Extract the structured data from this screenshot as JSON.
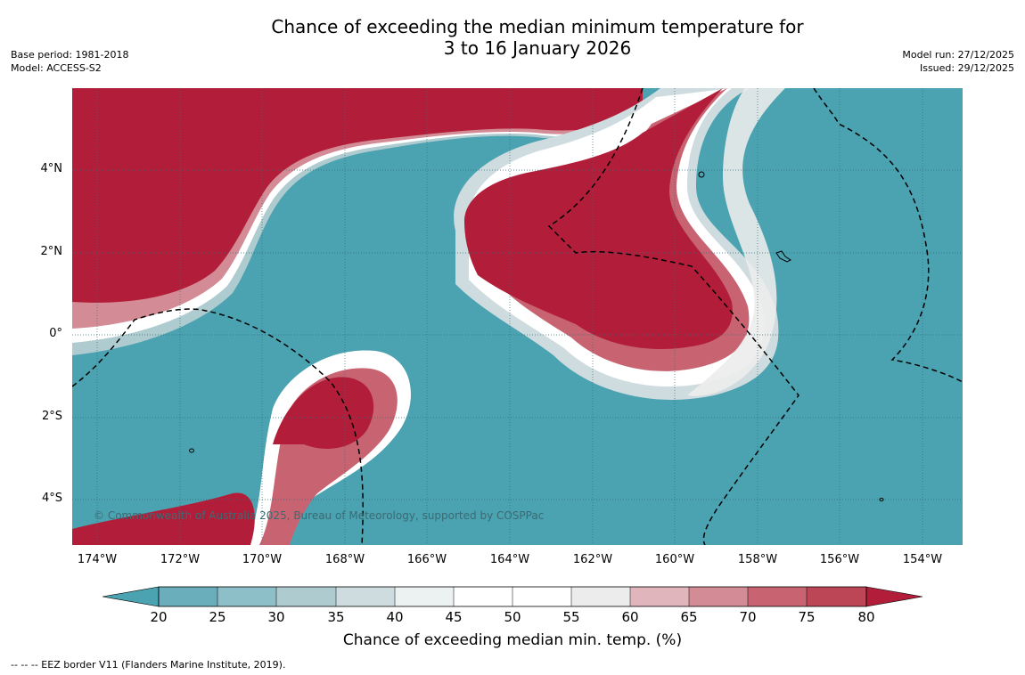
{
  "title": {
    "line1": "Chance of exceeding the median minimum temperature for",
    "line2": "3 to 16 January 2026"
  },
  "meta_left": {
    "base_period": "Base period: 1981-2018",
    "model": "Model: ACCESS-S2"
  },
  "meta_right": {
    "model_run": "Model run: 27/12/2025",
    "issued": "Issued: 29/12/2025"
  },
  "map": {
    "lat_ticks": [
      "4°N",
      "2°N",
      "0°",
      "2°S",
      "4°S"
    ],
    "lon_ticks": [
      "174°W",
      "172°W",
      "170°W",
      "168°W",
      "166°W",
      "164°W",
      "162°W",
      "160°W",
      "158°W",
      "156°W",
      "154°W"
    ],
    "copyright": "© Commonwealth of Australia 2025, Bureau of Meteorology, supported by COSPPac",
    "extent": {
      "lon": [
        -174.6,
        -153.0
      ],
      "lat": [
        -5.2,
        5.9
      ]
    }
  },
  "colorbar": {
    "label": "Chance of exceeding median min. temp. (%)",
    "ticks": [
      "20",
      "25",
      "30",
      "35",
      "40",
      "45",
      "50",
      "55",
      "60",
      "65",
      "70",
      "75",
      "80"
    ],
    "colors": {
      "under": "#4ba2b1",
      "20-25": "#6aaebb",
      "25-30": "#8cbfc8",
      "30-35": "#aecbcf",
      "35-40": "#cfdcdf",
      "40-45": "#ecf1f2",
      "45-50": "#ffffff",
      "50-55": "#ffffff",
      "55-60": "#ececec",
      "60-65": "#e0b5bb",
      "65-70": "#d38b95",
      "70-75": "#c86472",
      "75-80": "#bc4556",
      "over": "#b21e3a"
    }
  },
  "legend_note": "--  --  -- EEZ border V11 (Flanders Marine Institute, 2019)."
}
